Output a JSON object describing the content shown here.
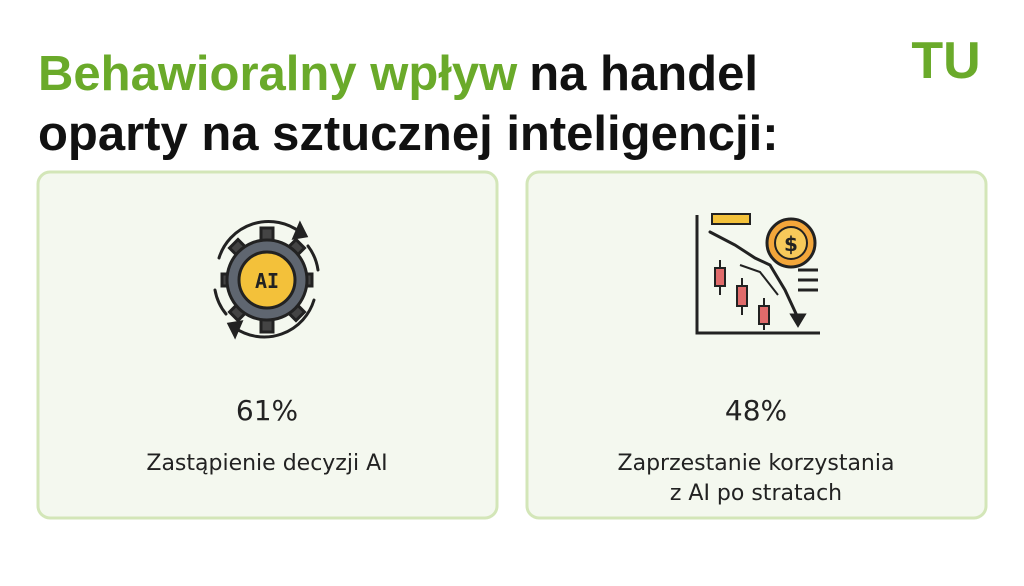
{
  "header": {
    "title_highlight": "Behawioralny wpływ",
    "title_rest": "na handel",
    "title_line2": "oparty na sztucznej inteligencji:",
    "logo": "TU"
  },
  "cards": [
    {
      "icon_text": "AI",
      "value": "61%",
      "label_lines": [
        "Zastąpienie decyzji AI"
      ]
    },
    {
      "icon_text": "$",
      "value": "48%",
      "label_lines": [
        "Zaprzestanie korzystania",
        "z AI po stratach"
      ]
    }
  ]
}
